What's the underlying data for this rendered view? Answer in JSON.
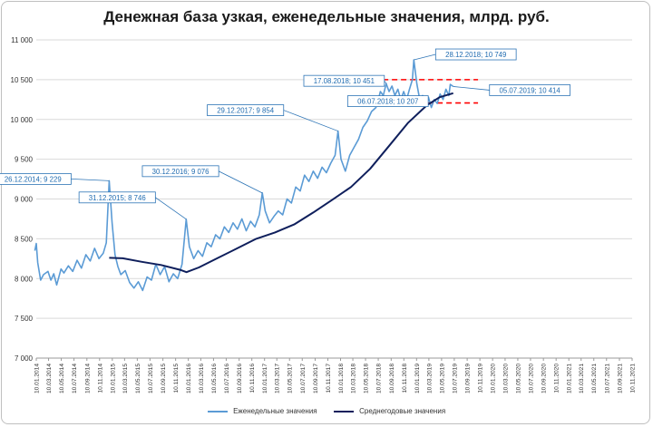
{
  "chart_data": {
    "type": "line",
    "title": "Денежная база узкая, еженедельные значения, млрд. руб.",
    "ylim": [
      7000,
      11000
    ],
    "y_ticks": [
      "7 000",
      "7 500",
      "8 000",
      "8 500",
      "9 000",
      "9 500",
      "10 000",
      "10 500",
      "11 000"
    ],
    "x_range": [
      "2014-01-10",
      "2021-11-10"
    ],
    "x_ticks": [
      "10.01.2014",
      "10.03.2014",
      "10.05.2014",
      "10.07.2014",
      "10.09.2014",
      "10.11.2014",
      "10.01.2015",
      "10.03.2015",
      "10.05.2015",
      "10.07.2015",
      "10.09.2015",
      "10.11.2015",
      "10.01.2016",
      "10.03.2016",
      "10.05.2016",
      "10.07.2016",
      "10.09.2016",
      "10.11.2016",
      "10.01.2017",
      "10.03.2017",
      "10.05.2017",
      "10.07.2017",
      "10.09.2017",
      "10.11.2017",
      "10.01.2018",
      "10.03.2018",
      "10.05.2018",
      "10.07.2018",
      "10.09.2018",
      "10.11.2018",
      "10.01.2019",
      "10.03.2019",
      "10.05.2019",
      "10.07.2019",
      "10.09.2019",
      "10.11.2019",
      "10.01.2020",
      "10.03.2020",
      "10.05.2020",
      "10.07.2020",
      "10.09.2020",
      "10.11.2020",
      "10.01.2021",
      "10.03.2021",
      "10.05.2021",
      "10.07.2021",
      "10.09.2021",
      "10.11.2021"
    ],
    "grid": true,
    "legend_position": "bottom",
    "series": [
      {
        "name": "Еженедельные значения",
        "color": "#5b9bd5",
        "points": [
          [
            "2014-01-03",
            8350
          ],
          [
            "2014-01-10",
            8440
          ],
          [
            "2014-01-17",
            8200
          ],
          [
            "2014-01-31",
            7980
          ],
          [
            "2014-02-14",
            8050
          ],
          [
            "2014-03-07",
            8090
          ],
          [
            "2014-03-21",
            7980
          ],
          [
            "2014-04-04",
            8060
          ],
          [
            "2014-04-18",
            7920
          ],
          [
            "2014-05-09",
            8120
          ],
          [
            "2014-05-23",
            8070
          ],
          [
            "2014-06-13",
            8160
          ],
          [
            "2014-07-04",
            8090
          ],
          [
            "2014-07-25",
            8230
          ],
          [
            "2014-08-15",
            8130
          ],
          [
            "2014-09-05",
            8300
          ],
          [
            "2014-09-26",
            8220
          ],
          [
            "2014-10-17",
            8380
          ],
          [
            "2014-11-07",
            8250
          ],
          [
            "2014-11-28",
            8320
          ],
          [
            "2014-12-12",
            8450
          ],
          [
            "2014-12-26",
            9229
          ],
          [
            "2015-01-09",
            8700
          ],
          [
            "2015-01-23",
            8300
          ],
          [
            "2015-02-06",
            8150
          ],
          [
            "2015-02-20",
            8050
          ],
          [
            "2015-03-13",
            8100
          ],
          [
            "2015-04-03",
            7950
          ],
          [
            "2015-04-24",
            7880
          ],
          [
            "2015-05-15",
            7960
          ],
          [
            "2015-06-05",
            7850
          ],
          [
            "2015-06-26",
            8020
          ],
          [
            "2015-07-17",
            7980
          ],
          [
            "2015-08-07",
            8180
          ],
          [
            "2015-08-28",
            8050
          ],
          [
            "2015-09-18",
            8150
          ],
          [
            "2015-10-09",
            7960
          ],
          [
            "2015-10-30",
            8060
          ],
          [
            "2015-11-20",
            8000
          ],
          [
            "2015-12-11",
            8180
          ],
          [
            "2015-12-31",
            8746
          ],
          [
            "2016-01-15",
            8400
          ],
          [
            "2016-02-05",
            8250
          ],
          [
            "2016-02-26",
            8350
          ],
          [
            "2016-03-18",
            8280
          ],
          [
            "2016-04-08",
            8450
          ],
          [
            "2016-04-29",
            8400
          ],
          [
            "2016-05-20",
            8550
          ],
          [
            "2016-06-10",
            8500
          ],
          [
            "2016-07-01",
            8650
          ],
          [
            "2016-07-22",
            8580
          ],
          [
            "2016-08-12",
            8700
          ],
          [
            "2016-09-02",
            8620
          ],
          [
            "2016-09-23",
            8750
          ],
          [
            "2016-10-14",
            8600
          ],
          [
            "2016-11-04",
            8720
          ],
          [
            "2016-11-25",
            8650
          ],
          [
            "2016-12-16",
            8800
          ],
          [
            "2016-12-30",
            9076
          ],
          [
            "2017-01-13",
            8850
          ],
          [
            "2017-02-03",
            8700
          ],
          [
            "2017-02-24",
            8780
          ],
          [
            "2017-03-17",
            8850
          ],
          [
            "2017-04-07",
            8800
          ],
          [
            "2017-04-28",
            9000
          ],
          [
            "2017-05-19",
            8950
          ],
          [
            "2017-06-09",
            9150
          ],
          [
            "2017-06-30",
            9100
          ],
          [
            "2017-07-21",
            9300
          ],
          [
            "2017-08-11",
            9220
          ],
          [
            "2017-09-01",
            9350
          ],
          [
            "2017-09-22",
            9260
          ],
          [
            "2017-10-13",
            9400
          ],
          [
            "2017-11-03",
            9330
          ],
          [
            "2017-11-24",
            9450
          ],
          [
            "2017-12-15",
            9550
          ],
          [
            "2017-12-29",
            9854
          ],
          [
            "2018-01-12",
            9500
          ],
          [
            "2018-02-02",
            9350
          ],
          [
            "2018-02-23",
            9550
          ],
          [
            "2018-03-16",
            9650
          ],
          [
            "2018-04-06",
            9750
          ],
          [
            "2018-04-27",
            9900
          ],
          [
            "2018-05-18",
            9980
          ],
          [
            "2018-06-08",
            10100
          ],
          [
            "2018-06-29",
            10150
          ],
          [
            "2018-07-06",
            10207
          ],
          [
            "2018-07-20",
            10350
          ],
          [
            "2018-08-03",
            10300
          ],
          [
            "2018-08-17",
            10451
          ],
          [
            "2018-08-31",
            10350
          ],
          [
            "2018-09-14",
            10420
          ],
          [
            "2018-09-28",
            10300
          ],
          [
            "2018-10-12",
            10380
          ],
          [
            "2018-10-26",
            10250
          ],
          [
            "2018-11-09",
            10350
          ],
          [
            "2018-11-23",
            10250
          ],
          [
            "2018-12-07",
            10380
          ],
          [
            "2018-12-21",
            10500
          ],
          [
            "2018-12-28",
            10749
          ],
          [
            "2019-01-11",
            10450
          ],
          [
            "2019-01-25",
            10250
          ],
          [
            "2019-02-08",
            10300
          ],
          [
            "2019-02-22",
            10200
          ],
          [
            "2019-03-08",
            10280
          ],
          [
            "2019-03-22",
            10150
          ],
          [
            "2019-04-05",
            10250
          ],
          [
            "2019-04-19",
            10200
          ],
          [
            "2019-05-03",
            10320
          ],
          [
            "2019-05-17",
            10250
          ],
          [
            "2019-05-31",
            10380
          ],
          [
            "2019-06-14",
            10300
          ],
          [
            "2019-06-21",
            10440
          ],
          [
            "2019-07-05",
            10414
          ]
        ]
      },
      {
        "name": "Среднегодовые значения",
        "color": "#0f1f5c",
        "points": [
          [
            "2014-12-26",
            8260
          ],
          [
            "2015-03-01",
            8255
          ],
          [
            "2015-06-01",
            8210
          ],
          [
            "2015-09-01",
            8170
          ],
          [
            "2015-12-01",
            8110
          ],
          [
            "2016-01-01",
            8080
          ],
          [
            "2016-03-01",
            8140
          ],
          [
            "2016-06-01",
            8260
          ],
          [
            "2016-09-01",
            8380
          ],
          [
            "2016-12-01",
            8500
          ],
          [
            "2017-03-01",
            8580
          ],
          [
            "2017-06-01",
            8680
          ],
          [
            "2017-09-01",
            8830
          ],
          [
            "2017-12-01",
            8990
          ],
          [
            "2018-03-01",
            9150
          ],
          [
            "2018-06-01",
            9380
          ],
          [
            "2018-09-01",
            9670
          ],
          [
            "2018-12-01",
            9960
          ],
          [
            "2019-03-01",
            10180
          ],
          [
            "2019-05-01",
            10280
          ],
          [
            "2019-07-05",
            10330
          ]
        ]
      }
    ],
    "reference_lines": [
      {
        "value": 10500,
        "color": "#ff0000",
        "style": "dashed",
        "from": "2018-08-01",
        "to": "2019-11-01"
      },
      {
        "value": 10207,
        "color": "#ff0000",
        "style": "dashed",
        "from": "2018-08-01",
        "to": "2019-11-01"
      }
    ],
    "annotations": [
      {
        "label": "26.12.2014; 9 229",
        "date": "2014-12-26",
        "value": 9229,
        "side": "left"
      },
      {
        "label": "31.12.2015; 8 746",
        "date": "2015-12-31",
        "value": 8746,
        "side": "left"
      },
      {
        "label": "30.12.2016; 9 076",
        "date": "2016-12-30",
        "value": 9076,
        "side": "left"
      },
      {
        "label": "29.12.2017; 9 854",
        "date": "2017-12-29",
        "value": 9854,
        "side": "left"
      },
      {
        "label": "17.08.2018; 10 451",
        "date": "2018-08-17",
        "value": 10451,
        "side": "left"
      },
      {
        "label": "06.07.2018; 10 207",
        "date": "2018-07-06",
        "value": 10207,
        "side": "left"
      },
      {
        "label": "28.12.2018; 10 749",
        "date": "2018-12-28",
        "value": 10749,
        "side": "right"
      },
      {
        "label": "05.07.2019; 10 414",
        "date": "2019-07-05",
        "value": 10414,
        "side": "right"
      }
    ]
  }
}
